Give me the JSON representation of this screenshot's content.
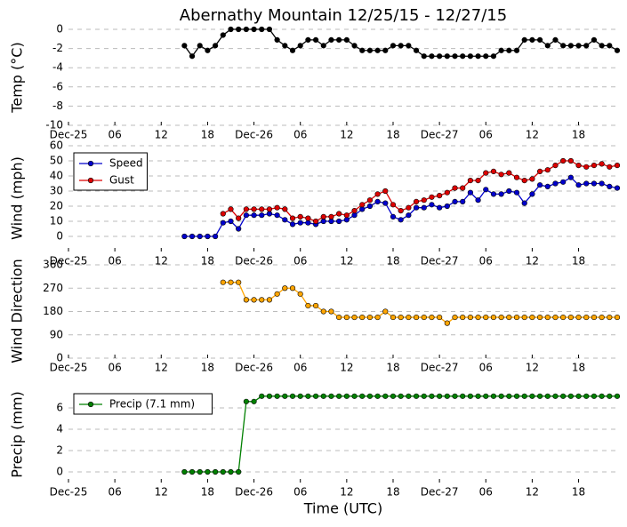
{
  "chart_data": [
    {
      "type": "line",
      "title": "Abernathy Mountain 12/25/15 - 12/27/15",
      "y_label": "Temp (°C)",
      "x": [
        15,
        16,
        17,
        18,
        19,
        20,
        21,
        22,
        23,
        24,
        25,
        26,
        27,
        28,
        29,
        30,
        31,
        32,
        33,
        34,
        35,
        36,
        37,
        38,
        39,
        40,
        41,
        42,
        43,
        44,
        45,
        46,
        47,
        48,
        49,
        50,
        51,
        52,
        53,
        54,
        55,
        56,
        57,
        58,
        59,
        60,
        61,
        62,
        63,
        64,
        65,
        66,
        67,
        68,
        69,
        70,
        71
      ],
      "values": [
        -1.7,
        -2.8,
        -1.7,
        -2.2,
        -1.7,
        -0.6,
        0,
        0,
        0,
        0,
        0,
        0,
        -1.1,
        -1.7,
        -2.2,
        -1.7,
        -1.1,
        -1.1,
        -1.7,
        -1.1,
        -1.1,
        -1.1,
        -1.7,
        -2.2,
        -2.2,
        -2.2,
        -2.2,
        -1.7,
        -1.7,
        -1.7,
        -2.2,
        -2.8,
        -2.8,
        -2.8,
        -2.8,
        -2.8,
        -2.8,
        -2.8,
        -2.8,
        -2.8,
        -2.8,
        -2.2,
        -2.2,
        -2.2,
        -1.1,
        -1.1,
        -1.1,
        -1.7,
        -1.1,
        -1.7,
        -1.7,
        -1.7,
        -1.7,
        -1.1,
        -1.7,
        -1.7,
        -2.2
      ],
      "color": "#000000",
      "xlim": [
        0,
        71
      ],
      "xticks": [
        {
          "value": 0,
          "label": "Dec-25"
        },
        {
          "value": 6,
          "label": "06"
        },
        {
          "value": 12,
          "label": "12"
        },
        {
          "value": 18,
          "label": "18"
        },
        {
          "value": 24,
          "label": "Dec-26"
        },
        {
          "value": 30,
          "label": "06"
        },
        {
          "value": 36,
          "label": "12"
        },
        {
          "value": 42,
          "label": "18"
        },
        {
          "value": 48,
          "label": "Dec-27"
        },
        {
          "value": 54,
          "label": "06"
        },
        {
          "value": 60,
          "label": "12"
        },
        {
          "value": 66,
          "label": "18"
        }
      ],
      "ylim": [
        -10,
        0
      ],
      "yticks": [
        0,
        -2,
        -4,
        -6,
        -8,
        -10
      ],
      "grid": true
    },
    {
      "type": "line",
      "y_label": "Wind (mph)",
      "legend": "upper left",
      "x": [
        15,
        16,
        17,
        18,
        19,
        20,
        21,
        22,
        23,
        24,
        25,
        26,
        27,
        28,
        29,
        30,
        31,
        32,
        33,
        34,
        35,
        36,
        37,
        38,
        39,
        40,
        41,
        42,
        43,
        44,
        45,
        46,
        47,
        48,
        49,
        50,
        51,
        52,
        53,
        54,
        55,
        56,
        57,
        58,
        59,
        60,
        61,
        62,
        63,
        64,
        65,
        66,
        67,
        68,
        69,
        70,
        71
      ],
      "series": [
        {
          "name": "Speed",
          "color": "#0000cc",
          "values": [
            0,
            0,
            0,
            0,
            0,
            9,
            10,
            5,
            14,
            14,
            14,
            15,
            14,
            11,
            8,
            9,
            9,
            8,
            10,
            10,
            10,
            11,
            14,
            18,
            20,
            23,
            22,
            13,
            11,
            14,
            19,
            19,
            21,
            19,
            20,
            23,
            23,
            29,
            24,
            31,
            28,
            28,
            30,
            29,
            22,
            28,
            34,
            33,
            35,
            36,
            39,
            34,
            35,
            35,
            35,
            33,
            32
          ]
        },
        {
          "name": "Gust",
          "color": "#dd0000",
          "values": [
            null,
            null,
            null,
            null,
            null,
            15,
            18,
            12,
            18,
            18,
            18,
            18,
            19,
            18,
            12,
            13,
            12,
            10,
            13,
            13,
            15,
            14,
            17,
            21,
            24,
            28,
            30,
            21,
            17,
            19,
            23,
            24,
            26,
            27,
            29,
            32,
            32,
            37,
            37,
            42,
            43,
            41,
            42,
            39,
            37,
            38,
            43,
            44,
            47,
            50,
            50,
            47,
            46,
            47,
            48,
            46,
            47
          ]
        }
      ],
      "xlim": [
        0,
        71
      ],
      "xticks": [
        {
          "value": 0,
          "label": "Dec-25"
        },
        {
          "value": 6,
          "label": "06"
        },
        {
          "value": 12,
          "label": "12"
        },
        {
          "value": 18,
          "label": "18"
        },
        {
          "value": 24,
          "label": "Dec-26"
        },
        {
          "value": 30,
          "label": "06"
        },
        {
          "value": 36,
          "label": "12"
        },
        {
          "value": 42,
          "label": "18"
        },
        {
          "value": 48,
          "label": "Dec-27"
        },
        {
          "value": 54,
          "label": "06"
        },
        {
          "value": 60,
          "label": "12"
        },
        {
          "value": 66,
          "label": "18"
        }
      ],
      "ylim": [
        -10,
        60
      ],
      "yticks": [
        0,
        10,
        20,
        30,
        40,
        50,
        60
      ],
      "grid": true
    },
    {
      "type": "line",
      "y_label": "Wind Direction",
      "x": [
        15,
        16,
        17,
        18,
        19,
        20,
        21,
        22,
        23,
        24,
        25,
        26,
        27,
        28,
        29,
        30,
        31,
        32,
        33,
        34,
        35,
        36,
        37,
        38,
        39,
        40,
        41,
        42,
        43,
        44,
        45,
        46,
        47,
        48,
        49,
        50,
        51,
        52,
        53,
        54,
        55,
        56,
        57,
        58,
        59,
        60,
        61,
        62,
        63,
        64,
        65,
        66,
        67,
        68,
        69,
        70,
        71
      ],
      "values": [
        null,
        null,
        null,
        null,
        null,
        292.5,
        292.5,
        292.5,
        225,
        225,
        225,
        225,
        247.5,
        270,
        270,
        247.5,
        202.5,
        202.5,
        180,
        180,
        157.5,
        157.5,
        157.5,
        157.5,
        157.5,
        157.5,
        180,
        157.5,
        157.5,
        157.5,
        157.5,
        157.5,
        157.5,
        157.5,
        135,
        157.5,
        157.5,
        157.5,
        157.5,
        157.5,
        157.5,
        157.5,
        157.5,
        157.5,
        157.5,
        157.5,
        157.5,
        157.5,
        157.5,
        157.5,
        157.5,
        157.5,
        157.5,
        157.5,
        157.5,
        157.5,
        157.5
      ],
      "color": "#ffa500",
      "xlim": [
        0,
        71
      ],
      "xticks": [
        {
          "value": 0,
          "label": "Dec-25"
        },
        {
          "value": 6,
          "label": "06"
        },
        {
          "value": 12,
          "label": "12"
        },
        {
          "value": 18,
          "label": "18"
        },
        {
          "value": 24,
          "label": "Dec-26"
        },
        {
          "value": 30,
          "label": "06"
        },
        {
          "value": 36,
          "label": "12"
        },
        {
          "value": 42,
          "label": "18"
        },
        {
          "value": 48,
          "label": "Dec-27"
        },
        {
          "value": 54,
          "label": "06"
        },
        {
          "value": 60,
          "label": "12"
        },
        {
          "value": 66,
          "label": "18"
        }
      ],
      "ylim": [
        0,
        360
      ],
      "yticks": [
        0,
        90,
        180,
        270,
        360
      ],
      "grid": true
    },
    {
      "type": "line",
      "y_label": "Precip (mm)",
      "x_label": "Time (UTC)",
      "legend": "upper left",
      "x": [
        15,
        16,
        17,
        18,
        19,
        20,
        21,
        22,
        23,
        24,
        25,
        26,
        27,
        28,
        29,
        30,
        31,
        32,
        33,
        34,
        35,
        36,
        37,
        38,
        39,
        40,
        41,
        42,
        43,
        44,
        45,
        46,
        47,
        48,
        49,
        50,
        51,
        52,
        53,
        54,
        55,
        56,
        57,
        58,
        59,
        60,
        61,
        62,
        63,
        64,
        65,
        66,
        67,
        68,
        69,
        70,
        71
      ],
      "series": [
        {
          "name": "Precip (7.1 mm)",
          "color": "#008000",
          "values": [
            0,
            0,
            0,
            0,
            0,
            0,
            0,
            0,
            6.6,
            6.6,
            7.1,
            7.1,
            7.1,
            7.1,
            7.1,
            7.1,
            7.1,
            7.1,
            7.1,
            7.1,
            7.1,
            7.1,
            7.1,
            7.1,
            7.1,
            7.1,
            7.1,
            7.1,
            7.1,
            7.1,
            7.1,
            7.1,
            7.1,
            7.1,
            7.1,
            7.1,
            7.1,
            7.1,
            7.1,
            7.1,
            7.1,
            7.1,
            7.1,
            7.1,
            7.1,
            7.1,
            7.1,
            7.1,
            7.1,
            7.1,
            7.1,
            7.1,
            7.1,
            7.1,
            7.1,
            7.1,
            7.1
          ]
        }
      ],
      "xlim": [
        0,
        71
      ],
      "xticks": [
        {
          "value": 0,
          "label": "Dec-25"
        },
        {
          "value": 6,
          "label": "06"
        },
        {
          "value": 12,
          "label": "12"
        },
        {
          "value": 18,
          "label": "18"
        },
        {
          "value": 24,
          "label": "Dec-26"
        },
        {
          "value": 30,
          "label": "06"
        },
        {
          "value": 36,
          "label": "12"
        },
        {
          "value": 42,
          "label": "18"
        },
        {
          "value": 48,
          "label": "Dec-27"
        },
        {
          "value": 54,
          "label": "06"
        },
        {
          "value": 60,
          "label": "12"
        },
        {
          "value": 66,
          "label": "18"
        }
      ],
      "ylim": [
        -1,
        8
      ],
      "yticks": [
        0,
        2,
        4,
        6
      ],
      "grid": true
    }
  ]
}
